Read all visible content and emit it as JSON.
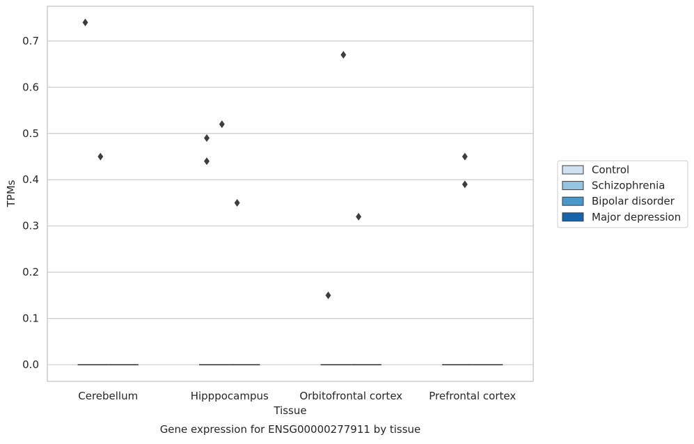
{
  "chart_data": {
    "type": "box",
    "title": "",
    "caption": "Gene expression for ENSG00000277911 by tissue",
    "xlabel": "Tissue",
    "ylabel": "TPMs",
    "ylim": [
      -0.036,
      0.775
    ],
    "yticks": [
      0.0,
      0.1,
      0.2,
      0.3,
      0.4,
      0.5,
      0.6,
      0.7
    ],
    "ytick_labels": [
      "0.0",
      "0.1",
      "0.2",
      "0.3",
      "0.4",
      "0.5",
      "0.6",
      "0.7"
    ],
    "grid": true,
    "legend_position": "right",
    "categories": [
      "Cerebellum",
      "Hipppocampus",
      "Orbitofrontal cortex",
      "Prefrontal cortex"
    ],
    "series": [
      {
        "name": "Control",
        "color": "#d0e1f2",
        "median": [
          0,
          0,
          0,
          0
        ],
        "outliers": [
          [
            0.74
          ],
          [
            0.49,
            0.44
          ],
          [
            0.15
          ],
          []
        ]
      },
      {
        "name": "Schizophrenia",
        "color": "#94c4df",
        "median": [
          0,
          0,
          0,
          0
        ],
        "outliers": [
          [
            0.45
          ],
          [
            0.52
          ],
          [
            0.67
          ],
          [
            0.45,
            0.39
          ]
        ]
      },
      {
        "name": "Bipolar disorder",
        "color": "#4a98c9",
        "median": [
          0,
          0,
          0,
          0
        ],
        "outliers": [
          [],
          [
            0.35
          ],
          [
            0.32
          ],
          []
        ]
      },
      {
        "name": "Major depression",
        "color": "#1764ab",
        "median": [
          0,
          0,
          0,
          0
        ],
        "outliers": [
          [],
          [],
          [],
          []
        ]
      }
    ]
  }
}
